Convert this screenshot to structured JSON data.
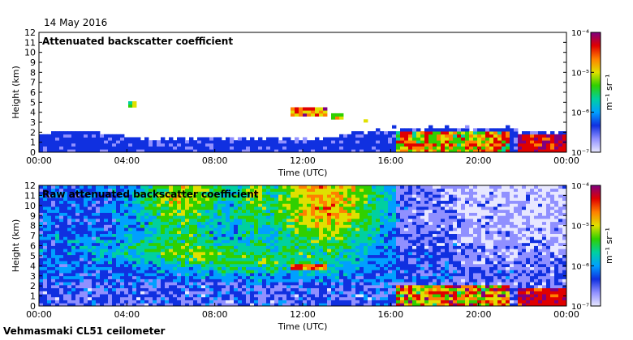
{
  "header": {
    "date": "14 May 2016"
  },
  "footer": {
    "instrument": "Vehmasmaki CL51 ceilometer"
  },
  "colors": {
    "cmap": [
      "#e8e8ff",
      "#9090ff",
      "#1030e0",
      "#00a0ff",
      "#00d0a0",
      "#30d000",
      "#e0e000",
      "#ff8000",
      "#e00000",
      "#800080"
    ]
  },
  "chart_data": [
    {
      "type": "heatmap",
      "title": "Attenuated backscatter coefficient",
      "xlabel": "Time (UTC)",
      "ylabel": "Height (km)",
      "x_ticks": [
        "00:00",
        "04:00",
        "08:00",
        "12:00",
        "16:00",
        "20:00",
        "00:00"
      ],
      "y_ticks": [
        "0",
        "1",
        "2",
        "3",
        "4",
        "5",
        "6",
        "7",
        "8",
        "9",
        "10",
        "11",
        "12"
      ],
      "xlim": [
        0,
        24
      ],
      "ylim": [
        0,
        12
      ],
      "colorbar": {
        "label": "m⁻¹ sr⁻¹",
        "scale": "log",
        "ticks": [
          "10⁻⁷",
          "10⁻⁶",
          "10⁻⁵",
          "10⁻⁴"
        ],
        "range": [
          1e-07,
          0.0001
        ]
      }
    },
    {
      "type": "heatmap",
      "title": "Raw attenuated backscatter coefficient",
      "xlabel": "Time (UTC)",
      "ylabel": "Height (km)",
      "x_ticks": [
        "00:00",
        "04:00",
        "08:00",
        "12:00",
        "16:00",
        "20:00",
        "00:00"
      ],
      "y_ticks": [
        "0",
        "1",
        "2",
        "3",
        "4",
        "5",
        "6",
        "7",
        "8",
        "9",
        "10",
        "11",
        "12"
      ],
      "xlim": [
        0,
        24
      ],
      "ylim": [
        0,
        12
      ],
      "colorbar": {
        "label": "m⁻¹ sr⁻¹",
        "scale": "log",
        "ticks": [
          "10⁻⁷",
          "10⁻⁶",
          "10⁻⁵",
          "10⁻⁴"
        ],
        "range": [
          1e-07,
          0.0001
        ]
      }
    }
  ]
}
